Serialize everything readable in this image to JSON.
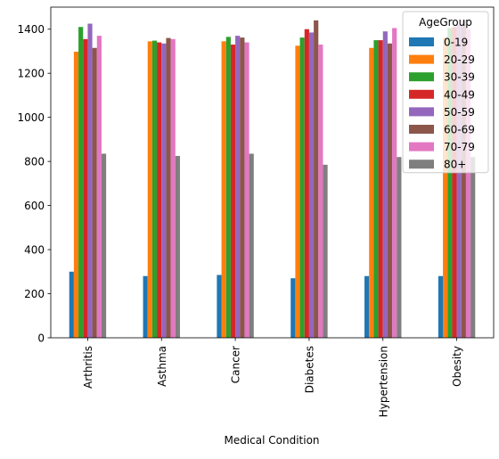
{
  "chart_data": {
    "type": "bar",
    "title": "",
    "xlabel": "Medical Condition",
    "ylabel": "",
    "ylim": [
      0,
      1500
    ],
    "yticks": [
      0,
      200,
      400,
      600,
      800,
      1000,
      1200,
      1400
    ],
    "grid": false,
    "legend_position": "top-right",
    "legend_title": "AgeGroup",
    "categories": [
      "Arthritis",
      "Asthma",
      "Cancer",
      "Diabetes",
      "Hypertension",
      "Obesity"
    ],
    "series": [
      {
        "name": "0-19",
        "color": "#1f77b4",
        "values": [
          300,
          280,
          285,
          270,
          280,
          280
        ]
      },
      {
        "name": "20-29",
        "color": "#ff7f0e",
        "values": [
          1298,
          1345,
          1345,
          1325,
          1315,
          1360
        ]
      },
      {
        "name": "30-39",
        "color": "#2ca02c",
        "values": [
          1410,
          1348,
          1365,
          1362,
          1350,
          1405
        ]
      },
      {
        "name": "40-49",
        "color": "#d62728",
        "values": [
          1355,
          1340,
          1330,
          1400,
          1350,
          1410
        ]
      },
      {
        "name": "50-59",
        "color": "#9467bd",
        "values": [
          1425,
          1335,
          1370,
          1385,
          1390,
          1420
        ]
      },
      {
        "name": "60-69",
        "color": "#8c564b",
        "values": [
          1315,
          1360,
          1362,
          1440,
          1335,
          1440
        ]
      },
      {
        "name": "70-79",
        "color": "#e377c2",
        "values": [
          1370,
          1355,
          1340,
          1330,
          1405,
          1400
        ]
      },
      {
        "name": "80+",
        "color": "#7f7f7f",
        "values": [
          835,
          825,
          835,
          785,
          820,
          820
        ]
      }
    ]
  }
}
